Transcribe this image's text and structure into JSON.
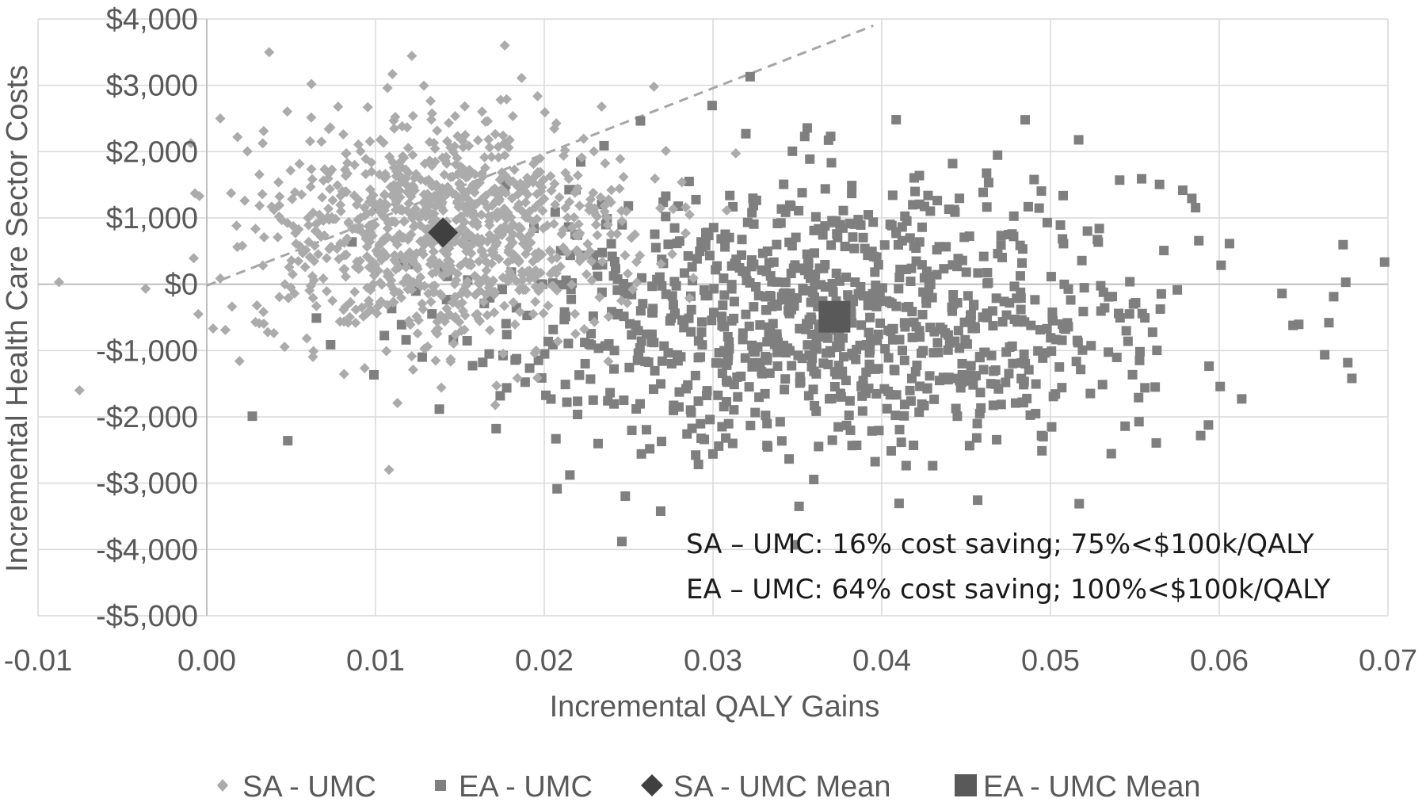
{
  "chart_data": {
    "type": "scatter",
    "title": "",
    "xlabel": "Incremental QALY Gains",
    "ylabel": "Incremental Health Care Sector Costs",
    "xlim": [
      -0.01,
      0.07
    ],
    "ylim": [
      -5000,
      4000
    ],
    "x_ticks": [
      -0.01,
      0.0,
      0.01,
      0.02,
      0.03,
      0.04,
      0.05,
      0.06,
      0.07
    ],
    "x_tick_labels": [
      "-0.01",
      "0.00",
      "0.01",
      "0.02",
      "0.03",
      "0.04",
      "0.05",
      "0.06",
      "0.07"
    ],
    "y_ticks": [
      4000,
      3000,
      2000,
      1000,
      0,
      -1000,
      -2000,
      -3000,
      -4000,
      -5000
    ],
    "y_tick_labels": [
      "$4,000",
      "$3,000",
      "$2,000",
      "$1,000",
      "$0",
      "-$1,000",
      "-$2,000",
      "-$3,000",
      "-$4,000",
      "-$5,000"
    ],
    "grid": true,
    "legend_position": "bottom",
    "threshold_line": {
      "description": "$100k/QALY willingness-to-pay threshold (dashed)",
      "x": [
        0.0,
        0.0395
      ],
      "y": [
        -20,
        3900
      ]
    },
    "series": [
      {
        "name": "SA - UMC",
        "marker": "diamond",
        "color": "#ababab",
        "n": 1000,
        "x_mean": 0.014,
        "x_sd": 0.0055,
        "y_mean": 780,
        "y_sd": 850,
        "sample_points": [
          {
            "x": 0.0037,
            "y": 3500
          },
          {
            "x": 0.0062,
            "y": 3020
          },
          {
            "x": 0.011,
            "y": 3170
          },
          {
            "x": 0.0265,
            "y": 2980
          },
          {
            "x": 0.0008,
            "y": 2500
          },
          {
            "x": 0.0234,
            "y": 2680
          },
          {
            "x": -0.0007,
            "y": 1370
          },
          {
            "x": -0.0005,
            "y": -450
          },
          {
            "x": 0.0108,
            "y": -2800
          },
          {
            "x": 0.0139,
            "y": -1560
          },
          {
            "x": 0.0011,
            "y": -690
          },
          {
            "x": 0.0245,
            "y": 1890
          }
        ]
      },
      {
        "name": "EA - UMC",
        "marker": "square",
        "color": "#7f7f7f",
        "n": 1000,
        "x_mean": 0.037,
        "x_sd": 0.0105,
        "y_mean": -480,
        "y_sd": 1050,
        "sample_points": [
          {
            "x": 0.0322,
            "y": 3130
          },
          {
            "x": 0.0485,
            "y": 2480
          },
          {
            "x": 0.0246,
            "y": -3880
          },
          {
            "x": 0.0675,
            "y": 30
          },
          {
            "x": 0.0027,
            "y": -1990
          },
          {
            "x": 0.0048,
            "y": -2360
          },
          {
            "x": 0.0517,
            "y": -3310
          },
          {
            "x": 0.0351,
            "y": -3350
          },
          {
            "x": 0.0665,
            "y": -580
          },
          {
            "x": 0.0541,
            "y": 1570
          },
          {
            "x": 0.0554,
            "y": 1590
          },
          {
            "x": 0.0442,
            "y": 1820
          }
        ]
      },
      {
        "name": "SA - UMC Mean",
        "marker": "diamond",
        "color": "#404040",
        "points": [
          {
            "x": 0.014,
            "y": 780
          }
        ]
      },
      {
        "name": "EA - UMC Mean",
        "marker": "square",
        "color": "#595959",
        "points": [
          {
            "x": 0.0372,
            "y": -490
          }
        ]
      }
    ],
    "annotations": [
      "SA – UMC: 16% cost saving; 75%<$100k/QALY",
      "EA – UMC: 64% cost saving; 100%<$100k/QALY"
    ]
  }
}
